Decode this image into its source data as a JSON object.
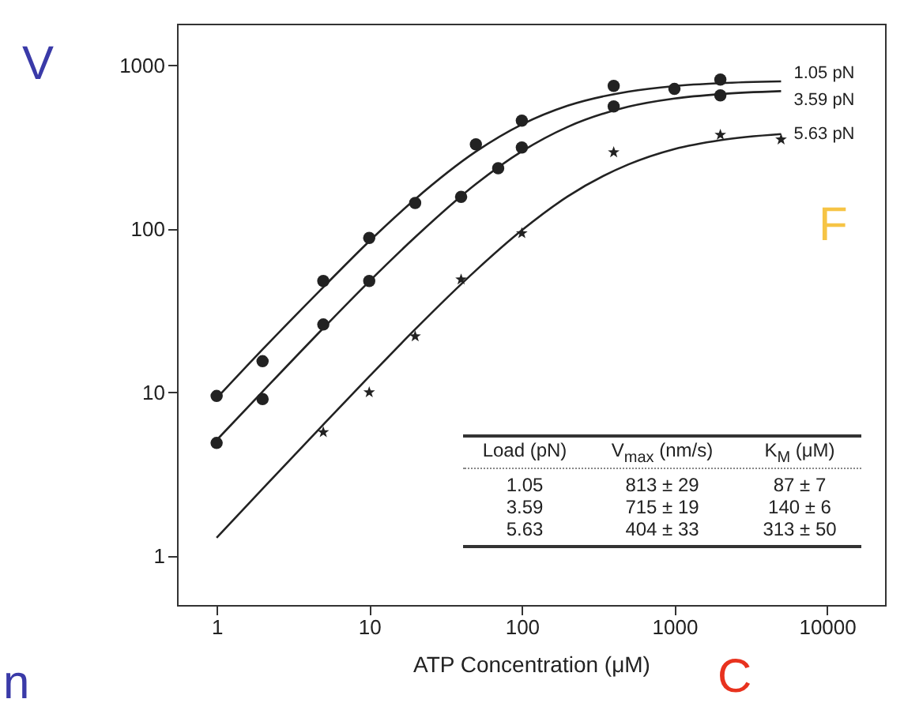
{
  "chart_data": {
    "type": "scatter",
    "xlabel": "ATP Concentration (μM)",
    "log": "xy",
    "xlim": [
      0.55,
      24000
    ],
    "ylim": [
      0.5,
      1800
    ],
    "xticks": [
      1,
      10,
      100,
      1000,
      10000
    ],
    "yticks": [
      1,
      10,
      100,
      1000
    ],
    "grid": false,
    "series": [
      {
        "marker": "circle",
        "color": "#222222",
        "x": [
          1,
          2,
          5,
          10,
          20,
          50,
          100,
          400,
          2000
        ],
        "values": [
          9.5,
          15.5,
          48,
          88,
          144,
          329,
          459,
          750,
          820
        ]
      },
      {
        "marker": "circle",
        "color": "#222222",
        "x": [
          1,
          2,
          5,
          10,
          40,
          70,
          100,
          400,
          1000,
          2000
        ],
        "values": [
          4.9,
          9.1,
          26,
          48,
          157,
          235,
          315,
          561,
          718,
          656
        ]
      },
      {
        "marker": "star",
        "color": "#222222",
        "x": [
          5,
          10,
          20,
          40,
          100,
          400,
          2000,
          5000
        ],
        "values": [
          5.7,
          10,
          22,
          49,
          94,
          294,
          376,
          352
        ]
      },
      {
        "type": "line",
        "name": "1.05 pN",
        "color": "#222222",
        "x": [
          1,
          2,
          5,
          10,
          20,
          50,
          100,
          200,
          500,
          1000,
          2000,
          5000
        ],
        "values": [
          9.2,
          18.3,
          44,
          84,
          152,
          297,
          435,
          567,
          692,
          748,
          779,
          799
        ]
      },
      {
        "type": "line",
        "name": "3.59 pN",
        "color": "#222222",
        "x": [
          1,
          2,
          5,
          10,
          20,
          50,
          100,
          200,
          500,
          1000,
          2000,
          5000
        ],
        "values": [
          5.1,
          10.1,
          24.7,
          47.7,
          89,
          188,
          298,
          421,
          559,
          627,
          668,
          696
        ]
      },
      {
        "type": "line",
        "name": "5.63 pN",
        "color": "#222222",
        "x": [
          1,
          2,
          5,
          10,
          20,
          50,
          100,
          200,
          500,
          1000,
          2000,
          5000
        ],
        "values": [
          1.29,
          2.57,
          6.35,
          12.5,
          24.3,
          55.7,
          98,
          158,
          248,
          308,
          349,
          380
        ]
      }
    ],
    "annotations": [
      "Load (pN)",
      "V$_{max}$ (nm/s)",
      "K$_{M}$ (μM)",
      "1.05",
      "813 ± 29",
      "87 ± 7",
      "3.59",
      "715 ± 19",
      "140 ± 6",
      "5.63",
      "404 ± 33",
      "313 ± 50",
      "V",
      "F",
      "C",
      "n"
    ]
  }
}
